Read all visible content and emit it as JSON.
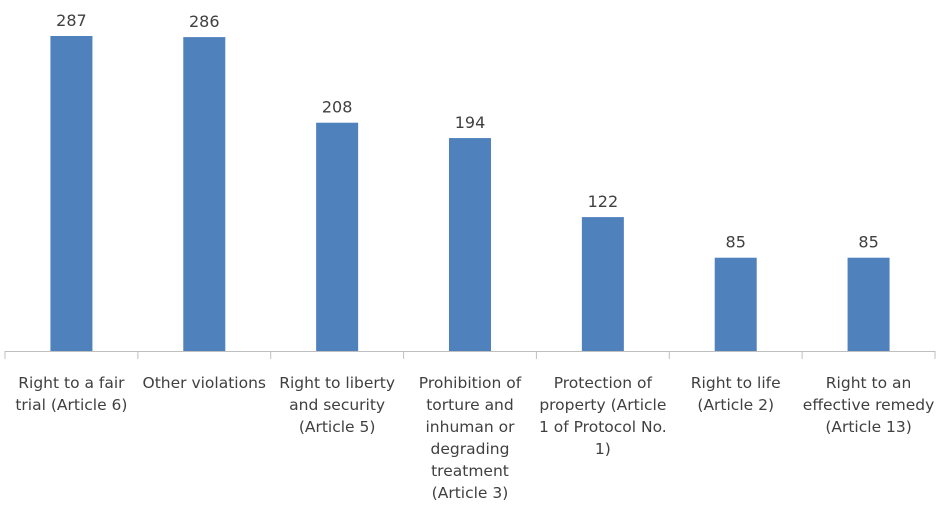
{
  "chart_data": {
    "type": "bar",
    "categories": [
      "Right to a fair trial (Article 6)",
      "Other violations",
      "Right to liberty and security (Article 5)",
      "Prohibition of torture and inhuman or degrading treatment (Article 3)",
      "Protection of property (Article 1 of Protocol No. 1)",
      "Right to life (Article 2)",
      "Right to an effective remedy (Article 13)"
    ],
    "values": [
      287,
      286,
      208,
      194,
      122,
      85,
      85
    ],
    "color": "#4f81bd"
  }
}
